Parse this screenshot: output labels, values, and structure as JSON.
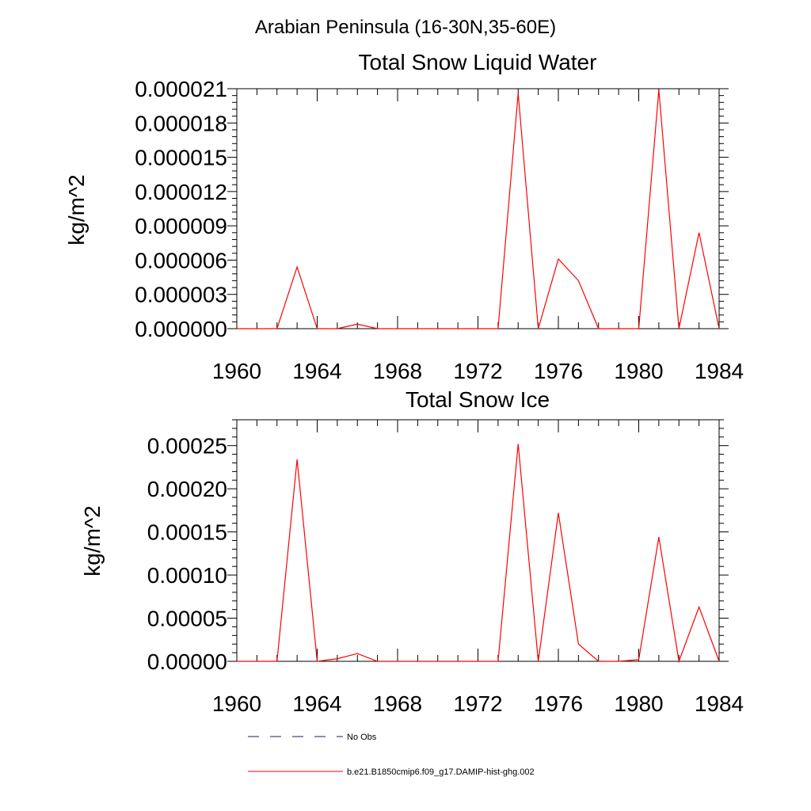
{
  "suptitle": "Arabian Peninsula (16-30N,35-60E)",
  "chart_data": [
    {
      "type": "line",
      "title": "Total Snow Liquid Water",
      "xlabel": "",
      "ylabel": "kg/m^2",
      "xlim": [
        1960,
        1984
      ],
      "ylim": [
        0,
        2.1e-05
      ],
      "xticks": [
        1960,
        1964,
        1968,
        1972,
        1976,
        1980,
        1984
      ],
      "xtick_labels": [
        "1960",
        "1964",
        "1968",
        "1972",
        "1976",
        "1980",
        "1984"
      ],
      "yticks": [
        0,
        3e-06,
        6e-06,
        9e-06,
        1.2e-05,
        1.5e-05,
        1.8e-05,
        2.1e-05
      ],
      "ytick_labels": [
        "0.000000",
        "0.000003",
        "0.000006",
        "0.000009",
        "0.000012",
        "0.000015",
        "0.000018",
        "0.000021"
      ],
      "grid": false,
      "series": [
        {
          "name": "b.e21.B1850cmip6.f09_g17.DAMIP-hist-ghg.002",
          "color": "#ff0000",
          "x": [
            1960,
            1961,
            1962,
            1963,
            1964,
            1965,
            1966,
            1967,
            1968,
            1969,
            1970,
            1971,
            1972,
            1973,
            1974,
            1975,
            1976,
            1977,
            1978,
            1979,
            1980,
            1981,
            1982,
            1983,
            1984
          ],
          "y": [
            0,
            0,
            0,
            5.4e-06,
            0,
            0,
            4e-07,
            0,
            0,
            0,
            0,
            0,
            0,
            0,
            2.06e-05,
            0,
            6.1e-06,
            4.2e-06,
            0,
            0,
            0,
            2.09e-05,
            0,
            8.4e-06,
            0
          ]
        }
      ]
    },
    {
      "type": "line",
      "title": "Total Snow Ice",
      "xlabel": "",
      "ylabel": "kg/m^2",
      "xlim": [
        1960,
        1984
      ],
      "ylim": [
        0,
        0.00028
      ],
      "xticks": [
        1960,
        1964,
        1968,
        1972,
        1976,
        1980,
        1984
      ],
      "xtick_labels": [
        "1960",
        "1964",
        "1968",
        "1972",
        "1976",
        "1980",
        "1984"
      ],
      "yticks": [
        0,
        5e-05,
        0.0001,
        0.00015,
        0.0002,
        0.00025
      ],
      "ytick_labels": [
        "0.00000",
        "0.00005",
        "0.00010",
        "0.00015",
        "0.00020",
        "0.00025"
      ],
      "grid": false,
      "series": [
        {
          "name": "b.e21.B1850cmip6.f09_g17.DAMIP-hist-ghg.002",
          "color": "#ff0000",
          "x": [
            1960,
            1961,
            1962,
            1963,
            1964,
            1965,
            1966,
            1967,
            1968,
            1969,
            1970,
            1971,
            1972,
            1973,
            1974,
            1975,
            1976,
            1977,
            1978,
            1979,
            1980,
            1981,
            1982,
            1983,
            1984
          ],
          "y": [
            0,
            0,
            0,
            0.000234,
            0,
            3e-06,
            9e-06,
            0,
            0,
            0,
            0,
            0,
            0,
            0,
            0.000252,
            0,
            0.000172,
            2e-05,
            0,
            0,
            2e-06,
            0.000144,
            0,
            6.3e-05,
            0
          ]
        }
      ]
    }
  ],
  "legend": {
    "placement": "bottom-left",
    "items": [
      {
        "label": "No Obs",
        "color": "#1a1a6e",
        "style": "dashed"
      },
      {
        "label": "b.e21.B1850cmip6.f09_g17.DAMIP-hist-ghg.002",
        "color": "#ff0000",
        "style": "solid"
      }
    ]
  }
}
